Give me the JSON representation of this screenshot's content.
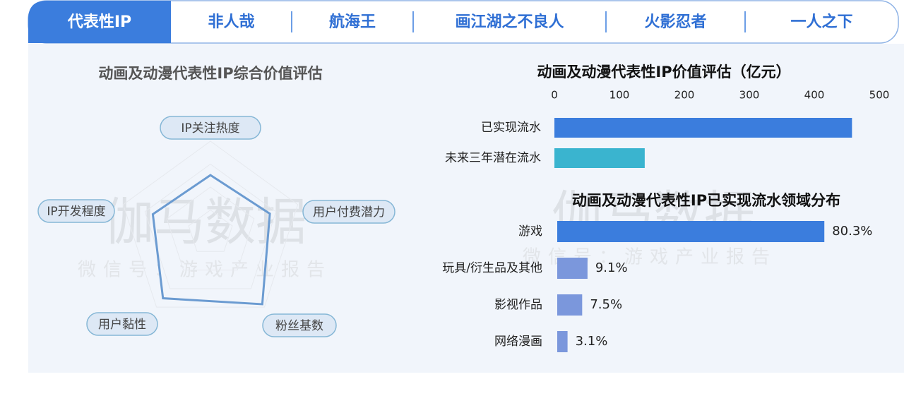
{
  "tabs": [
    "代表性IP",
    "非人哉",
    "航海王",
    "画江湖之不良人",
    "火影忍者",
    "一人之下"
  ],
  "active_tab": 0,
  "watermark": {
    "title": "伽马数据",
    "subtitle": "微信号：游戏产业报告"
  },
  "chart_data": [
    {
      "type": "radar",
      "title": "动画及动漫代表性IP综合价值评估",
      "categories": [
        "IP关注热度",
        "用户付费潜力",
        "粉丝基数",
        "用户黏性",
        "IP开发程度"
      ],
      "values": [
        63,
        68,
        96,
        88,
        66
      ],
      "color": "#6b9bd1",
      "rlim": [
        0,
        100
      ],
      "rticks": [
        25,
        50,
        75,
        100
      ]
    },
    {
      "type": "hbar",
      "title": "动画及动漫代表性IP价值评估（亿元）",
      "categories": [
        "已实现流水",
        "未来三年潜在流水"
      ],
      "values": [
        458,
        139
      ],
      "colors": [
        "#3b7ddd",
        "#3ab4cf"
      ],
      "xlim": [
        0,
        500
      ],
      "xticks": [
        0,
        100,
        200,
        300,
        400,
        500
      ]
    },
    {
      "type": "hbar-share",
      "title": "动画及动漫代表性IP已实现流水领域分布",
      "categories": [
        "游戏",
        "玩具/衍生品及其他",
        "影视作品",
        "网络漫画"
      ],
      "values": [
        80.3,
        9.1,
        7.5,
        3.1
      ],
      "value_labels": [
        "80.3%",
        "9.1%",
        "7.5%",
        "3.1%"
      ],
      "colors": [
        "#3b7ddd",
        "#7b97dc",
        "#7b97dc",
        "#7b97dc"
      ],
      "xlim": [
        0,
        100
      ]
    }
  ]
}
